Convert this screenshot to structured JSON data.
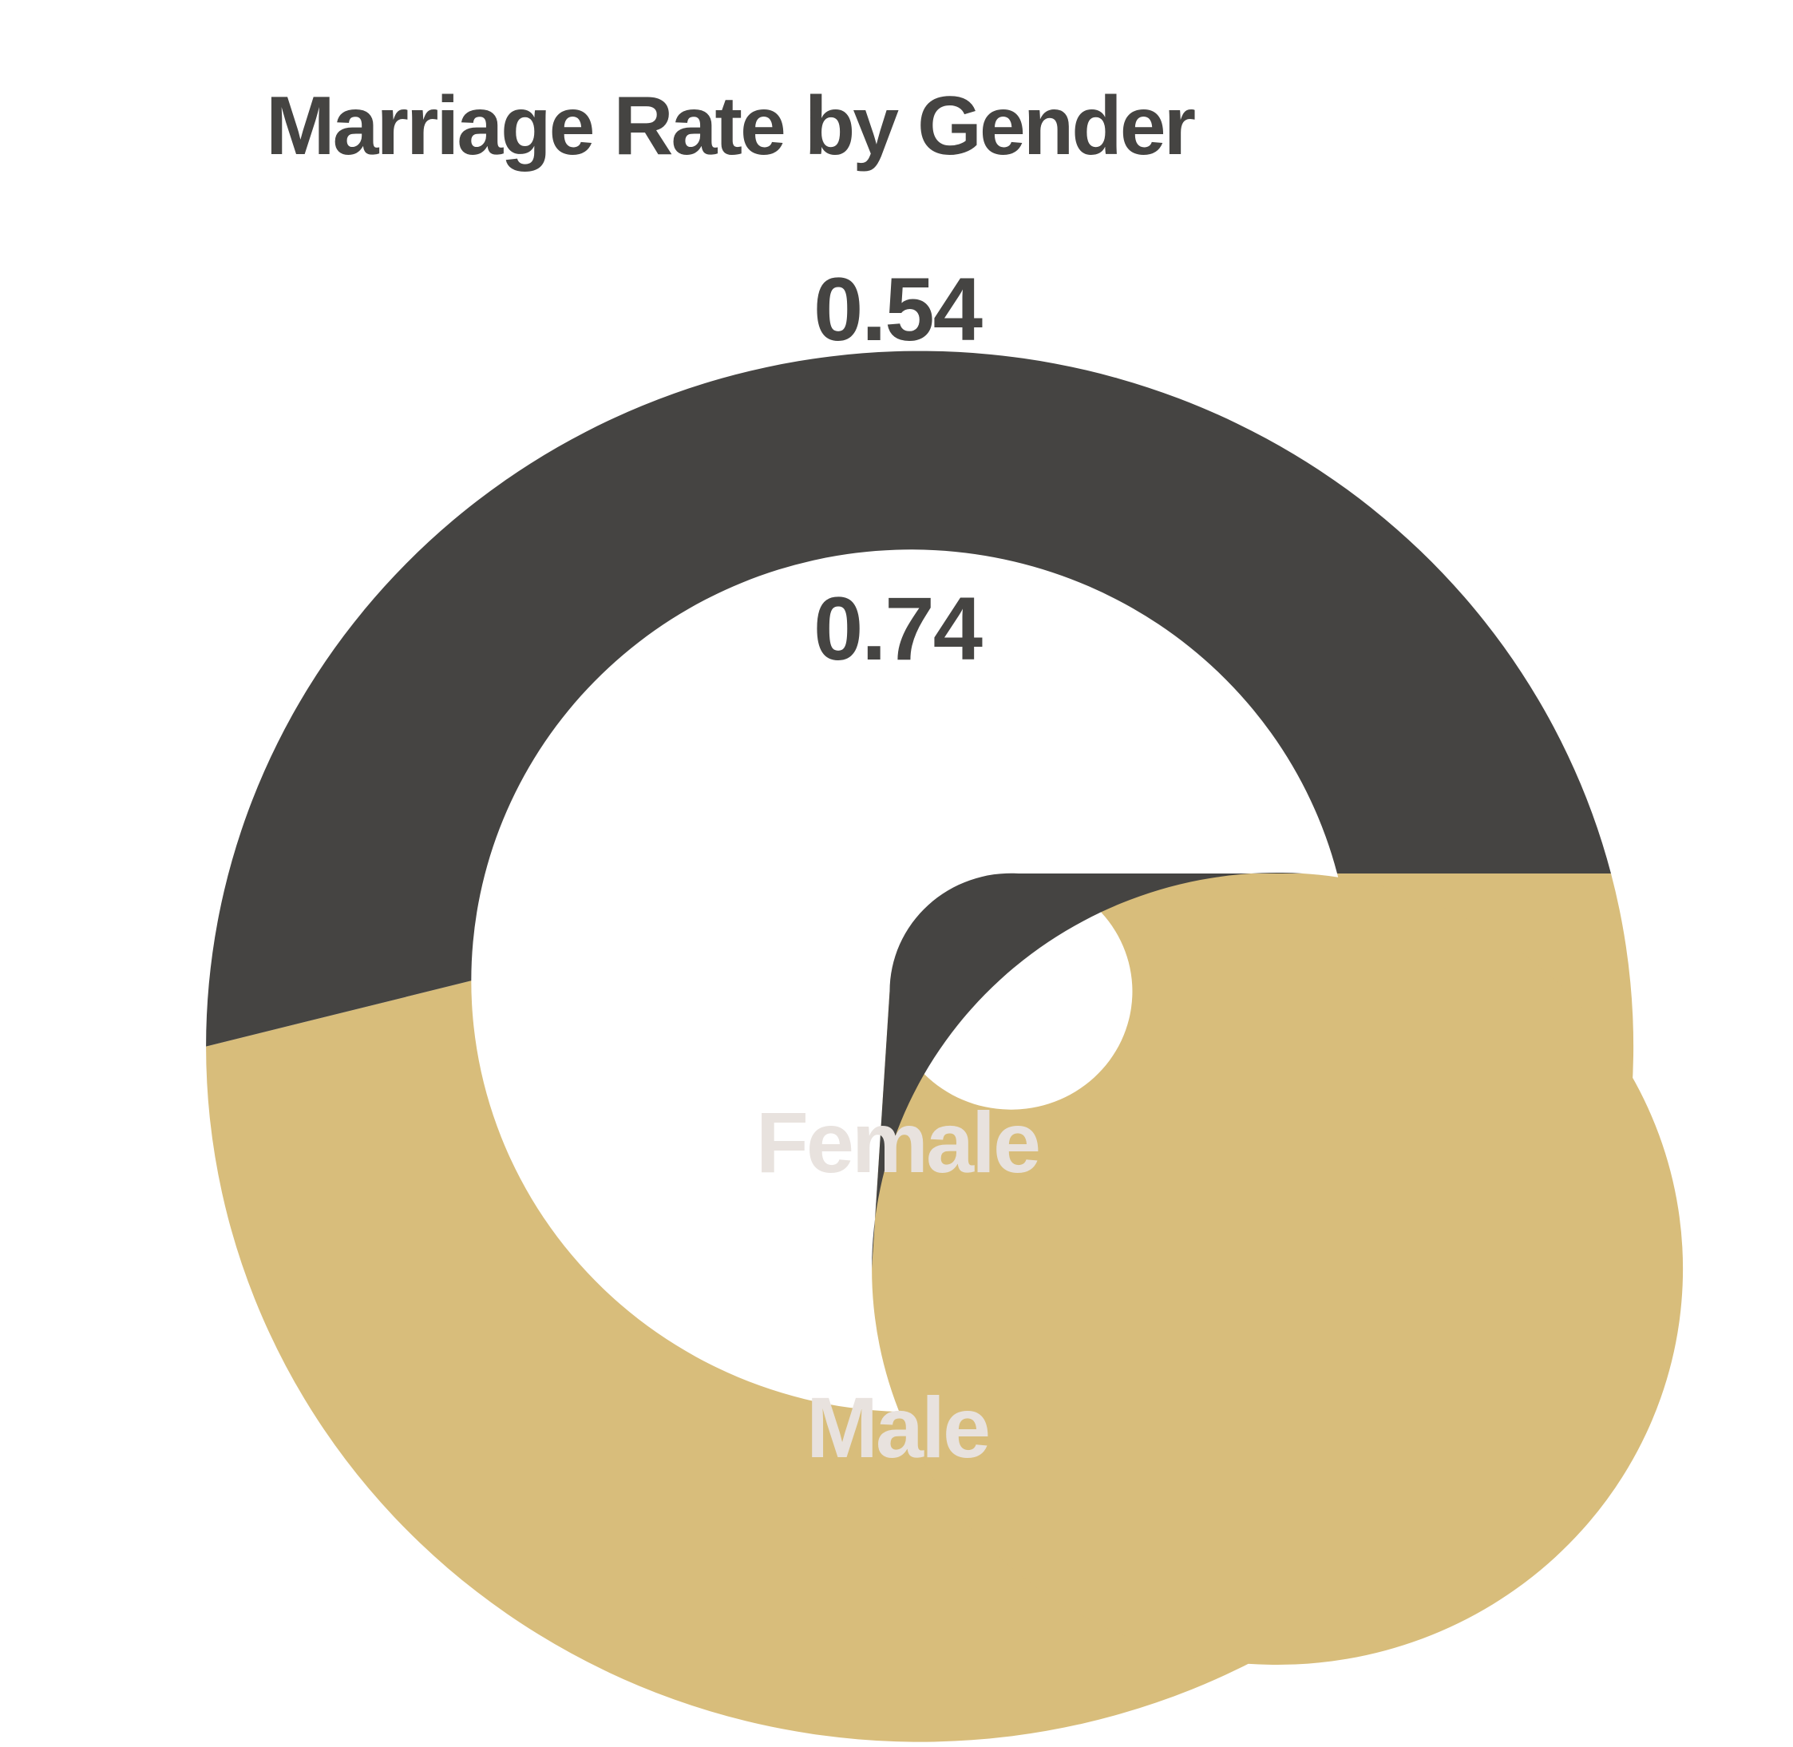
{
  "chart_data": {
    "type": "pie",
    "title": "Marriage Rate by Gender",
    "categories": [
      "Female",
      "Male"
    ],
    "rings": [
      {
        "values": [
          0.54,
          0.46
        ]
      },
      {
        "values": [
          0.74,
          0.26
        ]
      }
    ],
    "data_labels": {
      "outer_female": "0.54",
      "inner_female": "0.74",
      "inner_category": "Female",
      "outer_category": "Male"
    },
    "colors": {
      "Female": "#d8bd7b",
      "Male": "#454442",
      "value_text": "#454442",
      "category_text": "#e8e2de",
      "title_text": "#454442",
      "background": "#ffffff"
    }
  }
}
